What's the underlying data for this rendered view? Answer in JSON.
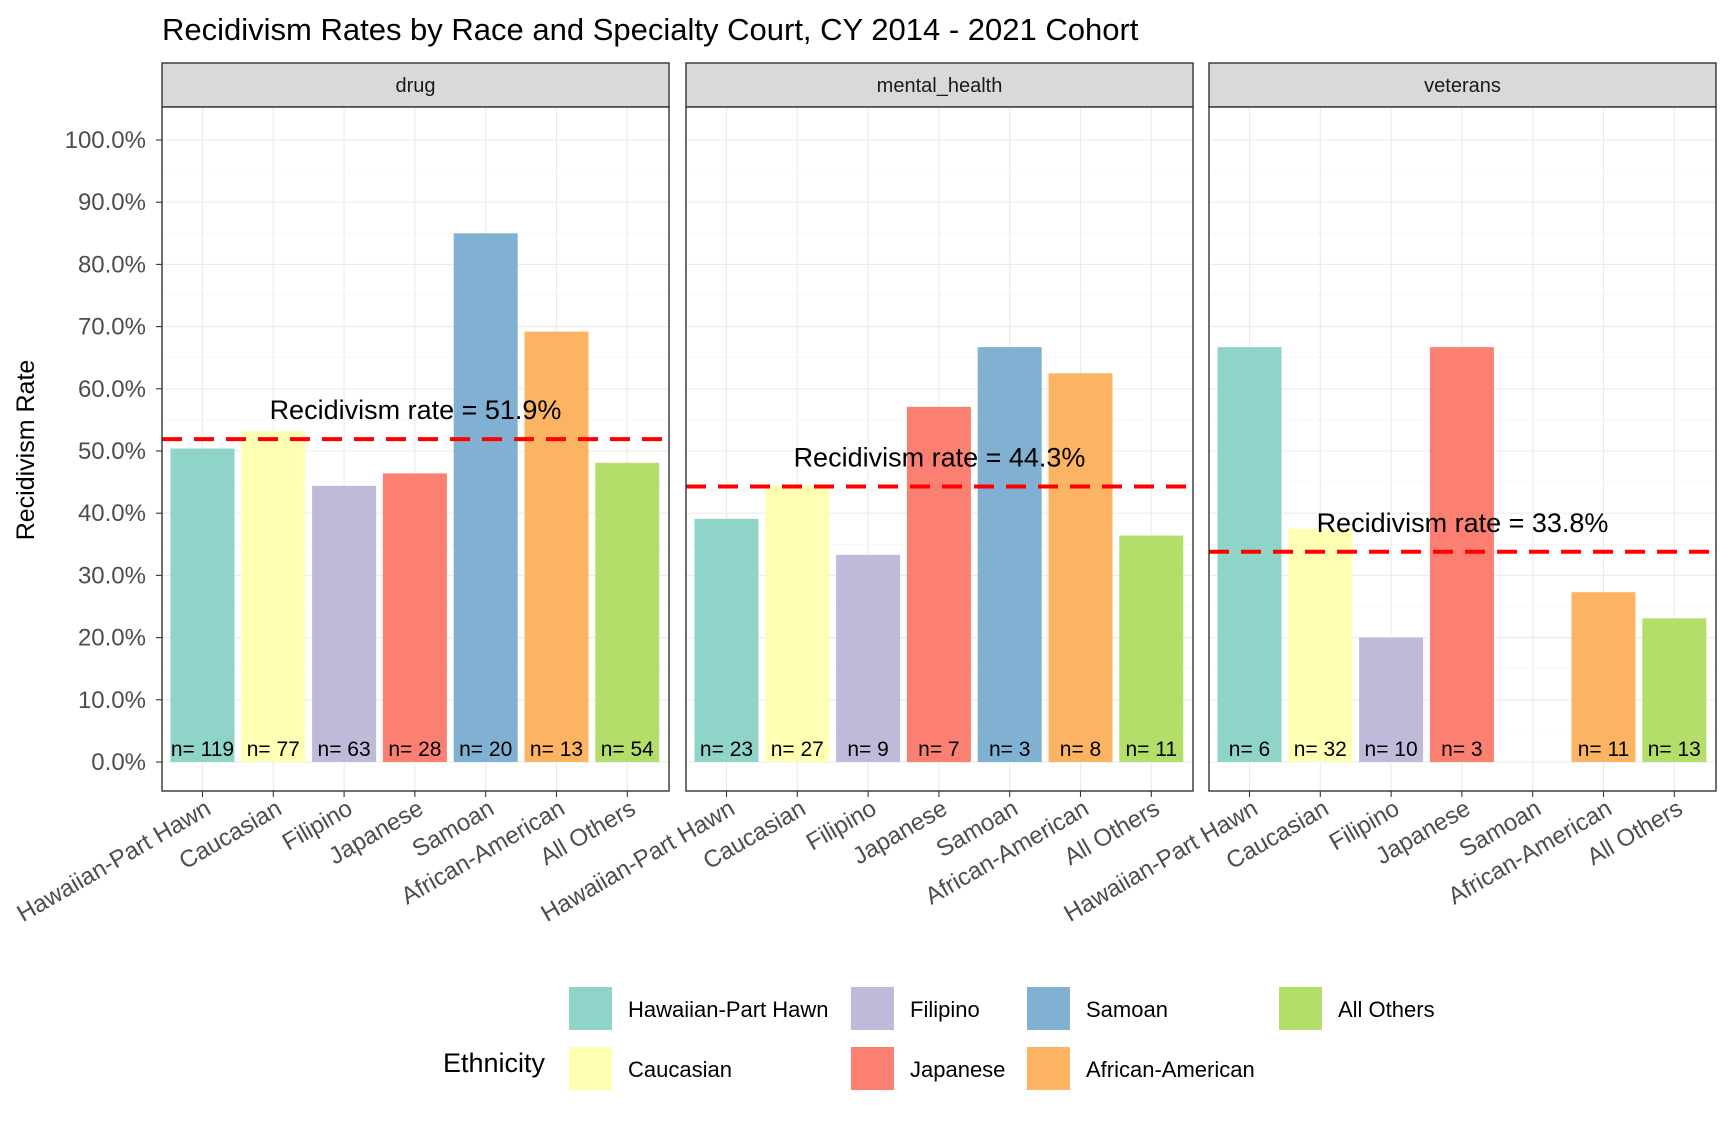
{
  "chart_data": {
    "type": "bar",
    "title": "Recidivism Rates by Race and Specialty Court, CY 2014 - 2021 Cohort",
    "xlabel": "",
    "ylabel": "Recidivism Rate",
    "ylim": [
      0,
      100
    ],
    "y_ticks": [
      "0.0%",
      "10.0%",
      "20.0%",
      "30.0%",
      "40.0%",
      "50.0%",
      "60.0%",
      "70.0%",
      "80.0%",
      "90.0%",
      "100.0%"
    ],
    "categories": [
      "Hawaiian-Part Hawn",
      "Caucasian",
      "Filipino",
      "Japanese",
      "Samoan",
      "African-American",
      "All Others"
    ],
    "colors": [
      "#8ed4c8",
      "#ffffb4",
      "#bebada",
      "#fb8072",
      "#80b1d3",
      "#fdb462",
      "#b3de69"
    ],
    "legend": {
      "title": "Ethnicity",
      "position": "bottom",
      "items": [
        "Hawaiian-Part Hawn",
        "Caucasian",
        "Filipino",
        "Japanese",
        "Samoan",
        "African-American",
        "All Others"
      ]
    },
    "grid": true,
    "reference_color": "#ff0000",
    "panels": [
      {
        "name": "drug",
        "values": [
          50.4,
          53.2,
          44.4,
          46.4,
          85.0,
          69.2,
          48.1
        ],
        "n_labels": [
          "n= 119",
          "n= 77",
          "n= 63",
          "n= 28",
          "n= 20",
          "n= 13",
          "n= 54"
        ],
        "overall_rate": 51.9,
        "overall_label": "Recidivism rate = 51.9%"
      },
      {
        "name": "mental_health",
        "values": [
          39.1,
          44.4,
          33.3,
          57.1,
          66.7,
          62.5,
          36.4
        ],
        "n_labels": [
          "n= 23",
          "n= 27",
          "n= 9",
          "n= 7",
          "n= 3",
          "n= 8",
          "n= 11"
        ],
        "overall_rate": 44.3,
        "overall_label": "Recidivism rate = 44.3%"
      },
      {
        "name": "veterans",
        "values": [
          66.7,
          37.5,
          20.0,
          66.7,
          null,
          27.3,
          23.1
        ],
        "n_labels": [
          "n= 6",
          "n= 32",
          "n= 10",
          "n= 3",
          "",
          "n= 11",
          "n= 13"
        ],
        "overall_rate": 33.8,
        "overall_label": "Recidivism rate = 33.8%"
      }
    ]
  }
}
